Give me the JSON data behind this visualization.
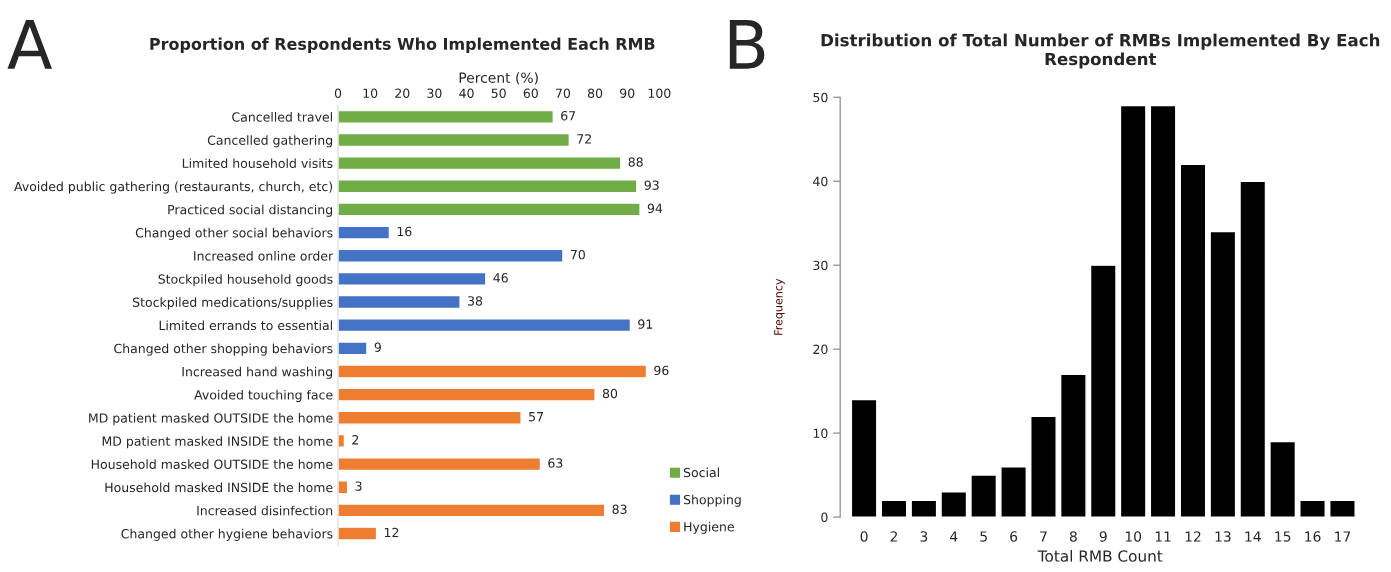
{
  "chart_data": [
    {
      "type": "bar",
      "orientation": "horizontal",
      "title": "Proportion of Respondents Who Implemented Each RMB",
      "xlabel": "Percent (%)",
      "annotations": [
        "A"
      ],
      "categories": [
        "Cancelled travel",
        "Cancelled gathering",
        "Limited household visits",
        "Avoided public gathering (restaurants, church, etc)",
        "Practiced social distancing",
        "Changed other social behaviors",
        "Increased online order",
        "Stockpiled household goods",
        "Stockpiled medications/supplies",
        "Limited errands to essential",
        "Changed other shopping behaviors",
        "Increased hand washing",
        "Avoided touching face",
        "MD patient masked OUTSIDE the home",
        "MD patient masked INSIDE the home",
        "Household masked OUTSIDE the home",
        "Household masked INSIDE the home",
        "Increased disinfection",
        "Changed other hygiene behaviors"
      ],
      "series": [
        {
          "name": "Social",
          "color": "#70ad47",
          "values": [
            67,
            72,
            88,
            93,
            94,
            null,
            null,
            null,
            null,
            null,
            null,
            null,
            null,
            null,
            null,
            null,
            null,
            null,
            null
          ]
        },
        {
          "name": "Shopping",
          "color": "#4472c4",
          "values": [
            null,
            null,
            null,
            null,
            null,
            16,
            70,
            46,
            38,
            91,
            9,
            null,
            null,
            null,
            null,
            null,
            null,
            null,
            null
          ]
        },
        {
          "name": "Hygiene",
          "color": "#ed7d31",
          "values": [
            null,
            null,
            null,
            null,
            null,
            null,
            null,
            null,
            null,
            null,
            null,
            96,
            80,
            57,
            2,
            63,
            3,
            83,
            12
          ]
        }
      ],
      "xlim": [
        0,
        100
      ],
      "xticks": [
        0,
        10,
        20,
        30,
        40,
        50,
        60,
        70,
        80,
        90,
        100
      ],
      "data_labels": true,
      "legend": "bottom right",
      "grid": false
    },
    {
      "type": "bar",
      "title": "Distribution of Total Number of RMBs Implemented By Each Respondent",
      "xlabel": "Total RMB Count",
      "ylabel": "Frequency",
      "annotations": [
        "B"
      ],
      "categories": [
        "0",
        "2",
        "3",
        "4",
        "5",
        "6",
        "7",
        "8",
        "9",
        "10",
        "11",
        "12",
        "13",
        "14",
        "15",
        "16",
        "17"
      ],
      "values": [
        14,
        2,
        2,
        3,
        5,
        6,
        12,
        17,
        30,
        49,
        49,
        42,
        34,
        40,
        9,
        2,
        2
      ],
      "color": "#000000",
      "ylim": [
        0,
        50
      ],
      "yticks": [
        0,
        10,
        20,
        30,
        40,
        50
      ],
      "legend": false,
      "grid": false
    }
  ]
}
